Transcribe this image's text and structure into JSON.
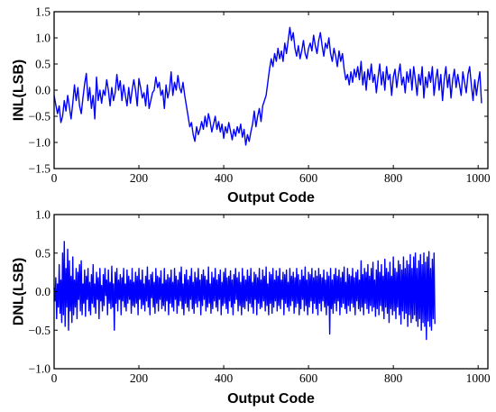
{
  "colors": {
    "series": "#0000ff",
    "axes": "#000000",
    "background": "#ffffff"
  },
  "chart_data": [
    {
      "id": "inl",
      "type": "line",
      "xlabel": "Output Code",
      "ylabel": "INL(LSB)",
      "xlim": [
        0,
        1023
      ],
      "ylim": [
        -1.5,
        1.5
      ],
      "xticks": [
        0,
        200,
        400,
        600,
        800,
        1000
      ],
      "yticks": [
        -1.5,
        -1.0,
        -0.5,
        0.0,
        0.5,
        1.0,
        1.5
      ],
      "xtick_labels": [
        "0",
        "200",
        "400",
        "600",
        "800",
        "1000"
      ],
      "ytick_labels": [
        "−1.5",
        "−1.0",
        "−0.5",
        "0.0",
        "0.5",
        "1.0",
        "1.5"
      ],
      "grid": false,
      "x_start": 0,
      "x_step": 4,
      "values": [
        -0.1,
        -0.28,
        -0.45,
        -0.3,
        -0.62,
        -0.5,
        -0.2,
        -0.4,
        -0.1,
        -0.32,
        -0.55,
        -0.25,
        0.1,
        -0.2,
        0.05,
        -0.3,
        -0.45,
        -0.15,
        0.12,
        0.32,
        -0.2,
        0.05,
        -0.35,
        -0.1,
        -0.55,
        0.25,
        -0.2,
        0.0,
        -0.25,
        0.0,
        -0.1,
        0.2,
        0.0,
        -0.3,
        0.05,
        -0.2,
        -0.05,
        0.3,
        0.0,
        0.18,
        -0.2,
        0.1,
        -0.1,
        -0.3,
        0.05,
        -0.25,
        0.0,
        0.2,
        0.0,
        -0.3,
        0.22,
        0.05,
        -0.15,
        -0.05,
        -0.3,
        0.1,
        -0.35,
        -0.2,
        -0.05,
        0.0,
        0.25,
        0.05,
        0.15,
        -0.1,
        0.0,
        -0.35,
        0.1,
        -0.15,
        0.0,
        0.35,
        -0.1,
        0.15,
        0.0,
        0.28,
        0.05,
        -0.05,
        0.15,
        -0.1,
        -0.3,
        -0.5,
        -0.7,
        -0.62,
        -0.85,
        -0.98,
        -0.7,
        -0.85,
        -0.75,
        -0.6,
        -0.75,
        -0.5,
        -0.7,
        -0.45,
        -0.6,
        -0.8,
        -0.65,
        -0.5,
        -0.75,
        -0.6,
        -0.8,
        -0.65,
        -0.92,
        -0.7,
        -0.82,
        -0.62,
        -0.78,
        -0.95,
        -0.75,
        -0.88,
        -0.7,
        -0.82,
        -0.65,
        -0.9,
        -0.75,
        -1.05,
        -0.85,
        -0.98,
        -0.8,
        -0.65,
        -0.4,
        -0.7,
        -0.5,
        -0.35,
        -0.6,
        -0.3,
        -0.2,
        -0.1,
        0.15,
        0.4,
        0.6,
        0.45,
        0.7,
        0.55,
        0.8,
        0.6,
        0.75,
        0.55,
        0.9,
        0.7,
        0.95,
        1.2,
        0.95,
        1.1,
        0.8,
        0.65,
        0.85,
        0.6,
        0.75,
        0.95,
        0.7,
        0.6,
        0.8,
        0.9,
        0.75,
        1.05,
        0.85,
        0.7,
        0.95,
        1.1,
        0.85,
        0.65,
        0.9,
        0.8,
        1.0,
        0.7,
        0.55,
        0.8,
        0.65,
        0.45,
        0.75,
        0.55,
        0.7,
        0.4,
        0.2,
        0.3,
        0.1,
        0.35,
        0.15,
        0.4,
        0.25,
        0.45,
        0.2,
        0.55,
        0.1,
        0.35,
        0.0,
        0.4,
        0.2,
        0.5,
        0.15,
        0.3,
        -0.05,
        0.25,
        0.5,
        0.1,
        0.35,
        0.0,
        0.45,
        0.2,
        0.3,
        -0.1,
        0.25,
        0.4,
        0.05,
        0.3,
        0.5,
        0.1,
        0.25,
        -0.05,
        0.35,
        0.15,
        0.4,
        0.0,
        0.45,
        0.2,
        -0.1,
        0.3,
        0.1,
        0.45,
        -0.15,
        0.25,
        0.05,
        0.35,
        0.15,
        0.45,
        -0.1,
        0.2,
        0.4,
        0.0,
        0.3,
        -0.2,
        0.2,
        0.45,
        0.05,
        0.3,
        -0.15,
        0.2,
        0.4,
        0.05,
        0.3,
        0.1,
        -0.1,
        0.35,
        0.15,
        -0.05,
        0.3,
        0.45,
        0.1,
        -0.2,
        0.2,
        -0.1,
        0.15,
        0.35,
        -0.25
      ]
    },
    {
      "id": "dnl",
      "type": "line",
      "xlabel": "Output Code",
      "ylabel": "DNL(LSB)",
      "xlim": [
        0,
        1023
      ],
      "ylim": [
        -1.0,
        1.0
      ],
      "xticks": [
        0,
        200,
        400,
        600,
        800,
        1000
      ],
      "yticks": [
        -1.0,
        -0.5,
        0.0,
        0.5,
        1.0
      ],
      "xtick_labels": [
        "0",
        "200",
        "400",
        "600",
        "800",
        "1000"
      ],
      "ytick_labels": [
        "−1.0",
        "−0.5",
        "0.0",
        "0.5",
        "1.0"
      ],
      "grid": false,
      "x_start": 0,
      "x_step": 2,
      "values": [
        0.05,
        -0.12,
        0.18,
        -0.35,
        0.1,
        -0.2,
        0.35,
        -0.28,
        0.15,
        -0.4,
        0.5,
        -0.3,
        0.65,
        -0.45,
        0.3,
        -0.2,
        0.55,
        -0.5,
        0.4,
        -0.25,
        0.2,
        -0.4,
        0.45,
        -0.3,
        0.15,
        -0.2,
        0.3,
        -0.35,
        0.25,
        -0.1,
        0.35,
        -0.25,
        0.4,
        -0.3,
        0.1,
        -0.15,
        0.28,
        -0.32,
        0.2,
        -0.1,
        0.3,
        -0.25,
        0.12,
        -0.3,
        0.22,
        -0.15,
        0.35,
        -0.2,
        0.1,
        -0.28,
        0.25,
        -0.1,
        0.18,
        -0.35,
        0.3,
        -0.12,
        0.08,
        -0.25,
        0.22,
        -0.18,
        0.3,
        -0.05,
        0.15,
        -0.3,
        0.28,
        -0.15,
        0.12,
        -0.22,
        0.33,
        -0.2,
        0.1,
        -0.5,
        0.25,
        -0.15,
        0.3,
        -0.25,
        0.15,
        -0.1,
        0.22,
        -0.3,
        0.18,
        -0.12,
        0.3,
        -0.2,
        0.1,
        -0.25,
        0.28,
        -0.15,
        0.2,
        -0.1,
        0.15,
        -0.28,
        0.3,
        -0.18,
        0.12,
        -0.2,
        0.25,
        -0.15,
        0.2,
        -0.3,
        0.3,
        -0.1,
        0.15,
        -0.22,
        0.28,
        -0.17,
        0.1,
        -0.25,
        0.2,
        -0.12,
        0.32,
        -0.2,
        0.15,
        -0.3,
        0.22,
        -0.08,
        0.25,
        -0.2,
        0.12,
        -0.28,
        0.3,
        -0.15,
        0.2,
        -0.25,
        0.18,
        -0.1,
        0.27,
        -0.22,
        0.1,
        -0.18,
        0.3,
        -0.25,
        0.15,
        -0.12,
        0.22,
        -0.3,
        0.18,
        -0.15,
        0.28,
        -0.2,
        0.12,
        -0.25,
        0.3,
        -0.1,
        0.2,
        -0.28,
        0.15,
        -0.18,
        0.25,
        -0.12,
        0.32,
        -0.22,
        0.1,
        -0.3,
        0.22,
        -0.15,
        0.28,
        -0.2,
        0.15,
        -0.25,
        0.2,
        -0.1,
        0.3,
        -0.22,
        0.12,
        -0.28,
        0.25,
        -0.15,
        0.18,
        -0.2,
        0.3,
        -0.12,
        0.15,
        -0.3,
        0.22,
        -0.18,
        0.28,
        -0.1,
        0.2,
        -0.25,
        0.15,
        -0.2,
        0.32,
        -0.15,
        0.1,
        -0.28,
        0.25,
        -0.22,
        0.18,
        -0.12,
        0.3,
        -0.2,
        0.15,
        -0.25,
        0.22,
        -0.1,
        0.28,
        -0.3,
        0.12,
        -0.18,
        0.25,
        -0.15,
        0.3,
        -0.22,
        0.18,
        -0.28,
        0.2,
        -0.12,
        0.27,
        -0.2,
        0.15,
        -0.3,
        0.22,
        -0.15,
        0.3,
        -0.1,
        0.18,
        -0.25,
        0.25,
        -0.18,
        0.12,
        -0.3,
        0.3,
        -0.2,
        0.2,
        -0.22,
        0.15,
        -0.12,
        0.28,
        -0.25,
        0.2,
        -0.15,
        0.3,
        -0.2,
        0.12,
        -0.28,
        0.25,
        -0.1,
        0.22,
        -0.3,
        0.18,
        -0.15,
        0.3,
        -0.22,
        0.15,
        -0.2,
        0.28,
        -0.12,
        0.2,
        -0.25,
        0.32,
        -0.18,
        0.1,
        -0.3,
        0.25,
        -0.15,
        0.22,
        -0.28,
        0.3,
        -0.2,
        0.15,
        -0.12,
        0.27,
        -0.25,
        0.2,
        -0.18,
        0.3,
        -0.22,
        0.15,
        -0.1,
        0.25,
        -0.3,
        0.22,
        -0.15,
        0.28,
        -0.2,
        0.12,
        -0.25,
        0.3,
        -0.18,
        0.2,
        -0.12,
        0.25,
        -0.28,
        0.18,
        -0.2,
        0.3,
        -0.15,
        0.22,
        -0.3,
        0.15,
        -0.22,
        0.28,
        -0.1,
        0.2,
        -0.25,
        0.32,
        -0.18,
        0.15,
        -0.3,
        0.25,
        -0.2,
        0.22,
        -0.12,
        0.3,
        -0.28,
        0.18,
        -0.15,
        0.27,
        -0.22,
        0.2,
        -0.3,
        0.3,
        -0.15,
        0.22,
        -0.25,
        0.18,
        -0.12,
        0.28,
        -0.2,
        0.15,
        -0.3,
        0.25,
        -0.18,
        0.2,
        -0.55,
        0.3,
        -0.22,
        0.15,
        -0.28,
        0.22,
        -0.15,
        0.3,
        -0.25,
        0.2,
        -0.12,
        0.28,
        -0.3,
        0.18,
        -0.2,
        0.25,
        -0.15,
        0.32,
        -0.22,
        0.12,
        -0.28,
        0.3,
        -0.18,
        0.22,
        -0.25,
        0.2,
        -0.15,
        0.3,
        -0.2,
        0.18,
        -0.3,
        0.25,
        -0.12,
        0.28,
        -0.22,
        0.15,
        -0.25,
        0.4,
        -0.2,
        0.22,
        -0.3,
        0.3,
        -0.15,
        0.25,
        -0.22,
        0.35,
        -0.28,
        0.2,
        -0.18,
        0.3,
        -0.25,
        0.38,
        -0.2,
        0.15,
        -0.32,
        0.28,
        -0.22,
        0.4,
        -0.3,
        0.25,
        -0.18,
        0.35,
        -0.25,
        0.2,
        -0.35,
        0.42,
        -0.2,
        0.3,
        -0.28,
        0.25,
        -0.4,
        0.38,
        -0.22,
        0.2,
        -0.3,
        0.45,
        -0.25,
        0.3,
        -0.35,
        0.25,
        -0.2,
        0.4,
        -0.3,
        0.35,
        -0.42,
        0.28,
        -0.25,
        0.45,
        -0.35,
        0.3,
        -0.28,
        0.4,
        -0.45,
        0.35,
        -0.3,
        0.48,
        -0.4,
        0.3,
        -0.35,
        0.45,
        -0.3,
        0.5,
        -0.38,
        0.3,
        -0.45,
        0.4,
        -0.35,
        0.48,
        -0.5,
        0.35,
        -0.4,
        0.5,
        -0.45,
        0.38,
        -0.62,
        0.45,
        -0.38,
        0.52,
        -0.45,
        0.3,
        -0.5,
        0.42,
        -0.35,
        0.5,
        -0.42
      ]
    }
  ]
}
